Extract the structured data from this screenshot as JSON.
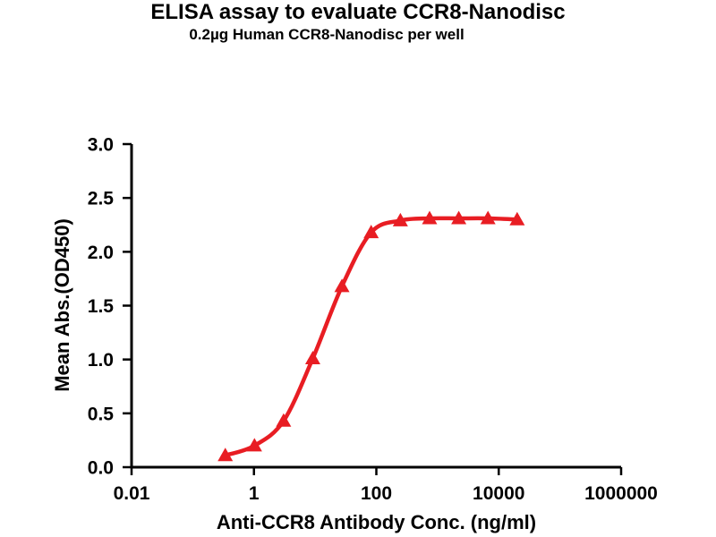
{
  "chart_data": {
    "type": "line",
    "title": "ELISA assay to evaluate CCR8-Nanodisc",
    "subtitle": "0.2µg Human CCR8-Nanodisc per well",
    "xlabel": "Anti-CCR8 Antibody Conc. (ng/ml)",
    "ylabel": "Mean Abs.(OD450)",
    "x_scale": "log10",
    "xlim": [
      0.01,
      1000000
    ],
    "ylim": [
      0.0,
      3.0
    ],
    "grid": false,
    "legend": false,
    "x_ticks": [
      {
        "value": 0.01,
        "label": "0.01"
      },
      {
        "value": 1,
        "label": "1"
      },
      {
        "value": 100,
        "label": "100"
      },
      {
        "value": 10000,
        "label": "10000"
      },
      {
        "value": 1000000,
        "label": "1000000"
      }
    ],
    "y_ticks": [
      {
        "value": 0.0,
        "label": "0.0"
      },
      {
        "value": 0.5,
        "label": "0.5"
      },
      {
        "value": 1.0,
        "label": "1.0"
      },
      {
        "value": 1.5,
        "label": "1.5"
      },
      {
        "value": 2.0,
        "label": "2.0"
      },
      {
        "value": 2.5,
        "label": "2.5"
      },
      {
        "value": 3.0,
        "label": "3.0"
      }
    ],
    "series": [
      {
        "marker": "filled-triangle-up",
        "color": "#e81d23",
        "x": [
          0.34,
          1.02,
          3.05,
          9.14,
          27.4,
          82.3,
          247,
          741,
          2222,
          6667,
          20000
        ],
        "y": [
          0.11,
          0.2,
          0.43,
          1.01,
          1.68,
          2.18,
          2.29,
          2.31,
          2.31,
          2.31,
          2.3
        ]
      }
    ]
  },
  "style": {
    "curve_color": "#e81d23",
    "axis_color": "#000000",
    "background": "#ffffff"
  }
}
